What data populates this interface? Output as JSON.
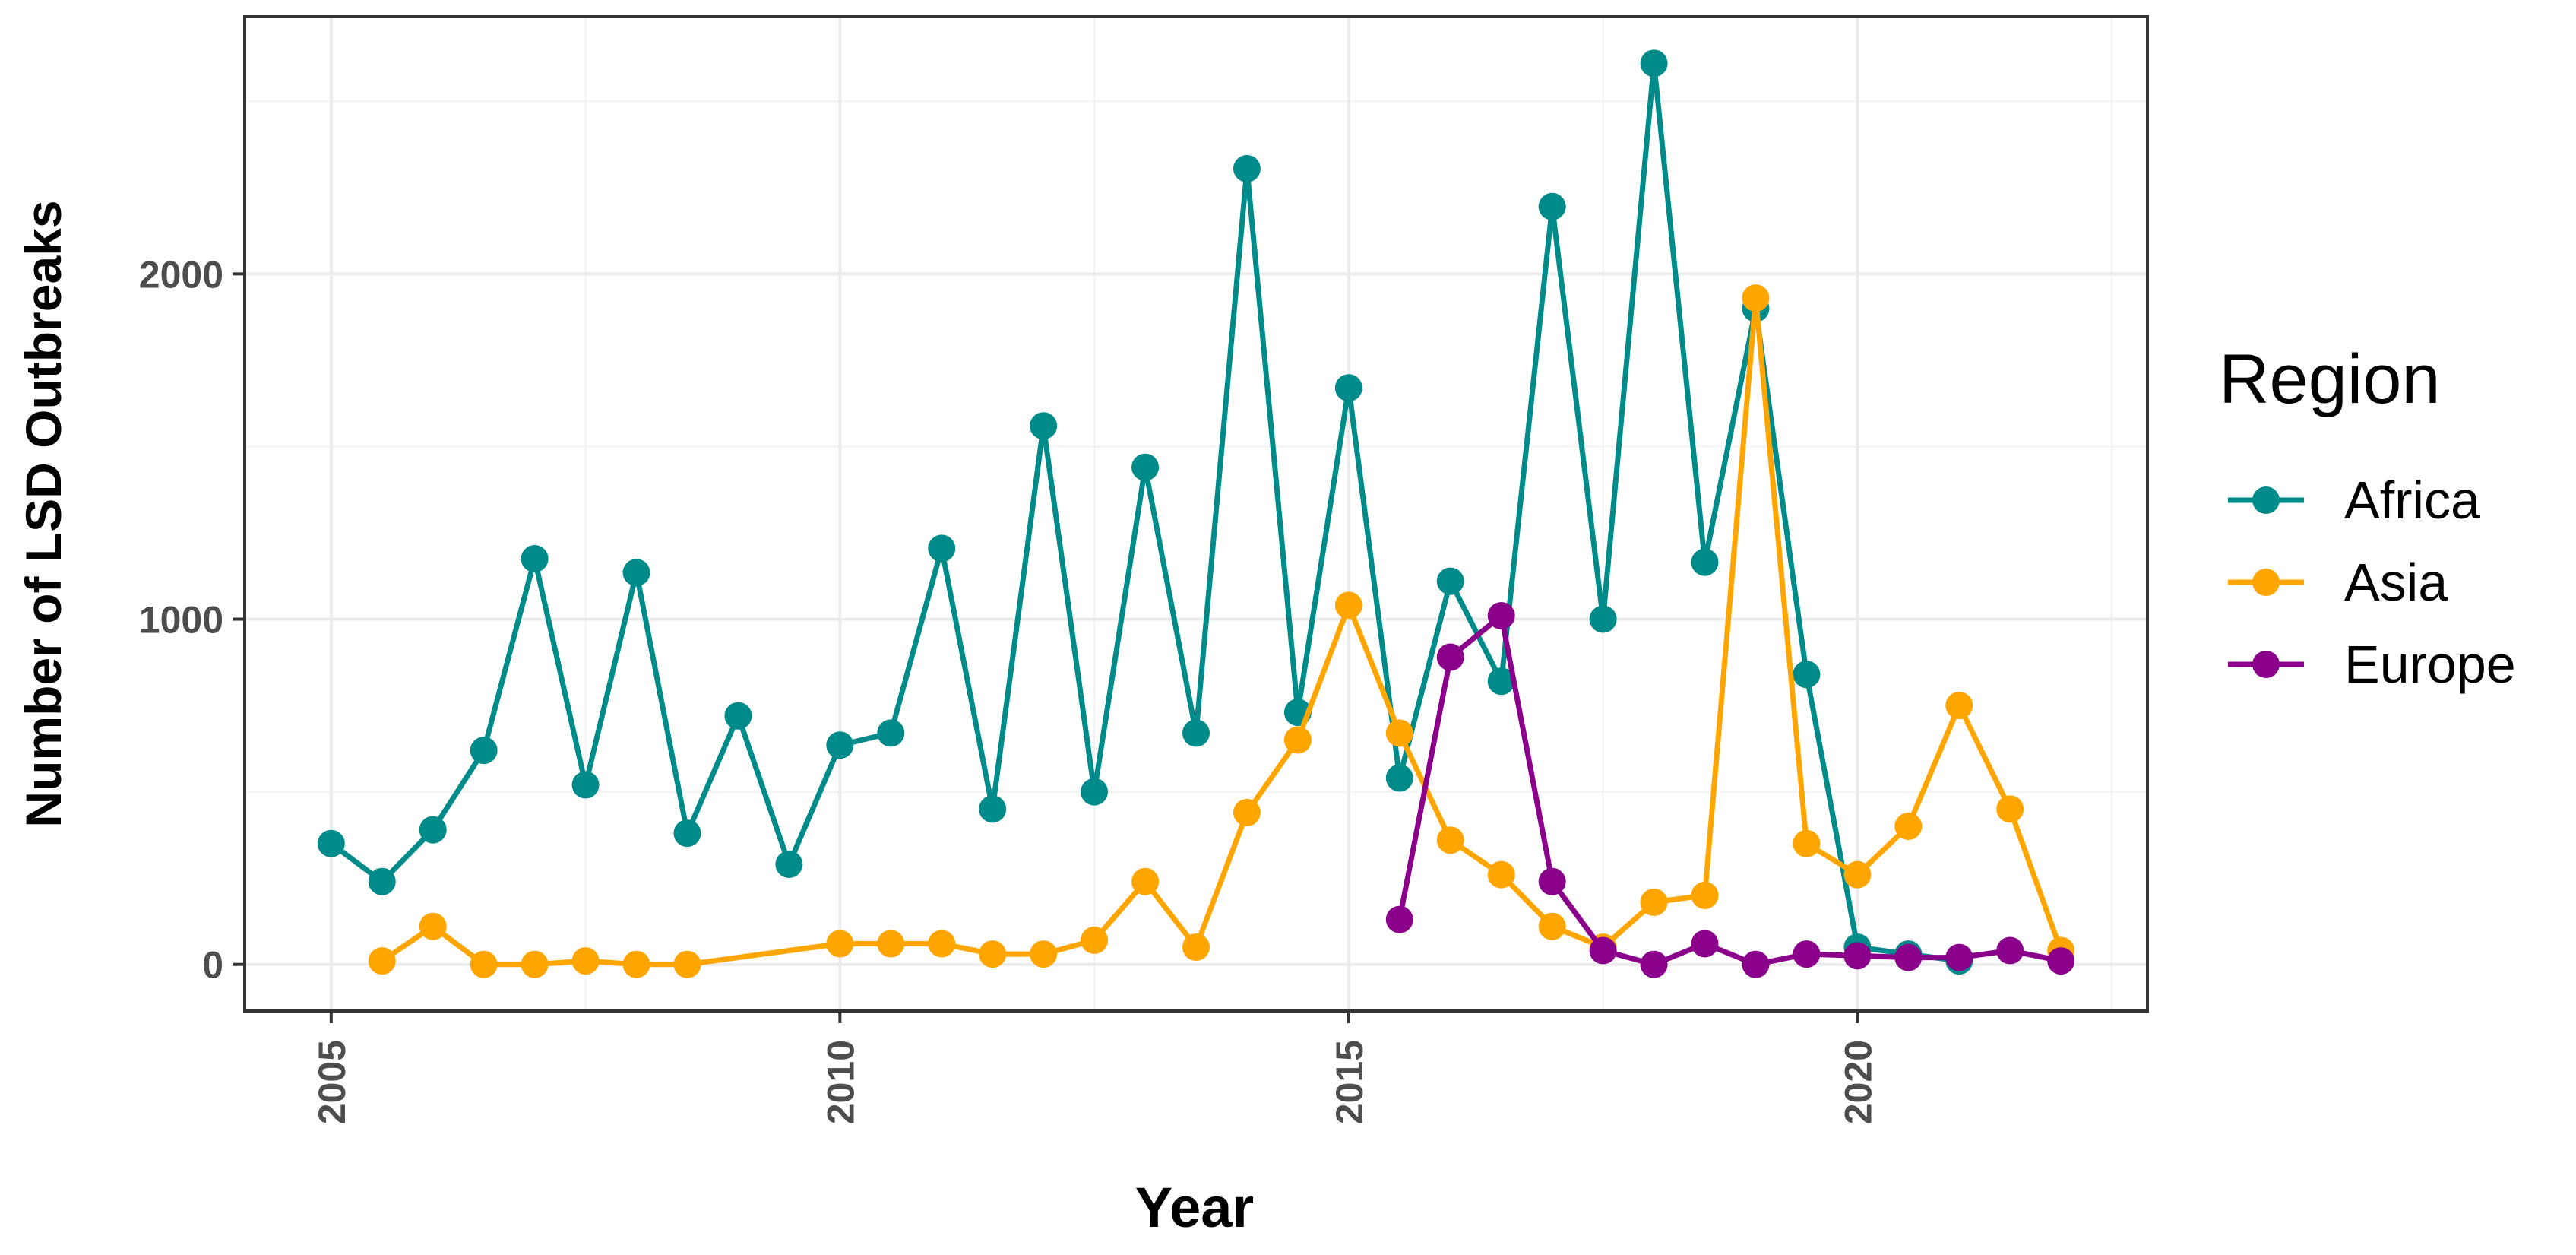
{
  "chart_data": {
    "type": "line",
    "title": "",
    "xlabel": "Year",
    "ylabel": "Number of LSD Outbreaks",
    "xlim": [
      2004.15,
      2022.85
    ],
    "ylim": [
      -135,
      2745
    ],
    "xticks": [
      2005,
      2010,
      2015,
      2020
    ],
    "xtick_labels": [
      "2005",
      "2010",
      "2015",
      "2020"
    ],
    "yticks": [
      0,
      1000,
      2000
    ],
    "ytick_labels": [
      "0",
      "1000",
      "2000"
    ],
    "grid": true,
    "legend": {
      "title": "Region",
      "position": "right"
    },
    "series": [
      {
        "name": "Africa",
        "color": "#008b8b",
        "x": [
          2005,
          2005.5,
          2006,
          2006.5,
          2007,
          2007.5,
          2008,
          2008.5,
          2009,
          2009.5,
          2010,
          2010.5,
          2011,
          2011.5,
          2012,
          2012.5,
          2013,
          2013.5,
          2014,
          2014.5,
          2015,
          2015.5,
          2016,
          2016.5,
          2017,
          2017.5,
          2018,
          2018.5,
          2019,
          2019.5,
          2020,
          2020.5,
          2021
        ],
        "values": [
          350,
          240,
          390,
          620,
          1175,
          520,
          1135,
          380,
          720,
          290,
          635,
          670,
          1205,
          450,
          1560,
          500,
          1440,
          670,
          2305,
          730,
          1670,
          540,
          1110,
          820,
          2195,
          1000,
          2610,
          1165,
          1900,
          840,
          50,
          30,
          10
        ]
      },
      {
        "name": "Asia",
        "color": "#ffa500",
        "x": [
          2005.5,
          2006,
          2006.5,
          2007,
          2007.5,
          2008,
          2008.5,
          2010,
          2010.5,
          2011,
          2011.5,
          2012,
          2012.5,
          2013,
          2013.5,
          2014,
          2014.5,
          2015,
          2015.5,
          2016,
          2016.5,
          2017,
          2017.5,
          2018,
          2018.5,
          2019,
          2019.5,
          2020,
          2020.5,
          2021,
          2021.5,
          2022
        ],
        "values": [
          10,
          110,
          0,
          0,
          10,
          0,
          0,
          60,
          60,
          60,
          30,
          30,
          70,
          240,
          50,
          440,
          650,
          1040,
          670,
          360,
          260,
          110,
          50,
          180,
          200,
          1930,
          350,
          260,
          400,
          750,
          450,
          40
        ]
      },
      {
        "name": "Europe",
        "color": "#8b008b",
        "x": [
          2015.5,
          2016,
          2016.5,
          2017,
          2017.5,
          2018,
          2018.5,
          2019,
          2019.5,
          2020,
          2020.5,
          2021,
          2021.5,
          2022
        ],
        "values": [
          130,
          890,
          1010,
          240,
          40,
          0,
          60,
          0,
          30,
          25,
          20,
          20,
          40,
          10
        ]
      }
    ]
  }
}
